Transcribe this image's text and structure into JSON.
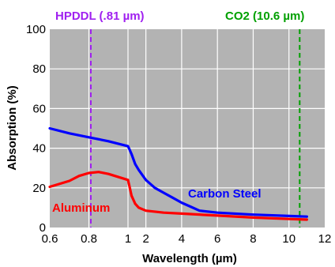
{
  "chart_data": {
    "type": "line",
    "xlabel": "Wavelength (µm)",
    "ylabel": "Absorption (%)",
    "ylim": [
      0,
      100
    ],
    "x_tick_labels": [
      "0.6",
      "0.8",
      "1",
      "2",
      "4",
      "6",
      "8",
      "10",
      "12"
    ],
    "y_tick_labels": [
      "0",
      "20",
      "40",
      "60",
      "80",
      "100"
    ],
    "grid": true,
    "plot_background": "#b3b3b3",
    "series": [
      {
        "name": "Carbon Steel",
        "color": "#0000ff",
        "points": [
          [
            0.6,
            50
          ],
          [
            0.7,
            47.5
          ],
          [
            0.8,
            45.5
          ],
          [
            0.9,
            43.5
          ],
          [
            1.0,
            41
          ],
          [
            1.1,
            39
          ],
          [
            1.2,
            37
          ],
          [
            1.4,
            32
          ],
          [
            1.6,
            29
          ],
          [
            2.0,
            24
          ],
          [
            2.5,
            20
          ],
          [
            3.0,
            17.5
          ],
          [
            3.5,
            15
          ],
          [
            4.0,
            12.5
          ],
          [
            4.5,
            10.5
          ],
          [
            5.0,
            8.5
          ],
          [
            6.0,
            7.5
          ],
          [
            8.0,
            6.5
          ],
          [
            10.0,
            5.8
          ],
          [
            11.0,
            5.5
          ]
        ]
      },
      {
        "name": "Aluminum",
        "color": "#ff0000",
        "points": [
          [
            0.6,
            20.5
          ],
          [
            0.7,
            23.5
          ],
          [
            0.75,
            26
          ],
          [
            0.8,
            27.5
          ],
          [
            0.85,
            28
          ],
          [
            0.9,
            27
          ],
          [
            1.0,
            24
          ],
          [
            1.1,
            20
          ],
          [
            1.2,
            16
          ],
          [
            1.4,
            12
          ],
          [
            1.6,
            10
          ],
          [
            2.0,
            8.5
          ],
          [
            3.0,
            7.5
          ],
          [
            4.0,
            7
          ],
          [
            6.0,
            6
          ],
          [
            8.0,
            5
          ],
          [
            10.0,
            4.3
          ],
          [
            11.0,
            4
          ]
        ]
      }
    ],
    "annotations": [
      {
        "label": "HPDDL (.81 µm)",
        "x": 0.81,
        "color": "#a020f0"
      },
      {
        "label": "CO2 (10.6 µm)",
        "x": 10.6,
        "color": "#00a000"
      }
    ]
  }
}
